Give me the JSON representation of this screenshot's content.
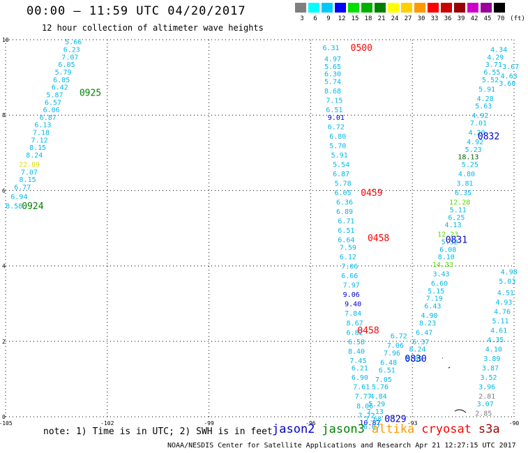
{
  "header": {
    "title": "00:00 – 11:59 UTC 04/20/2017",
    "subtitle": "12 hour collection of altimeter wave heights"
  },
  "color_scale": {
    "labels": [
      "3",
      "6",
      "9",
      "12",
      "15",
      "18",
      "21",
      "24",
      "27",
      "30",
      "33",
      "36",
      "39",
      "42",
      "45",
      "70"
    ],
    "unit": "(ft)",
    "colors": [
      "#7f7f7f",
      "#00ffff",
      "#00c8ff",
      "#0000ff",
      "#00e000",
      "#00b000",
      "#008000",
      "#ffff00",
      "#ffd000",
      "#ff9900",
      "#ff0000",
      "#cc0000",
      "#990000",
      "#cc00cc",
      "#990099",
      "#000000"
    ]
  },
  "axes": {
    "x_ticks": [
      "-105",
      "-102",
      "-99",
      "-96",
      "-93",
      "-90"
    ],
    "y_ticks": [
      "0",
      "2",
      "4",
      "6",
      "8",
      "10"
    ]
  },
  "chart_data": {
    "type": "scatter",
    "xlim": [
      -105,
      -90
    ],
    "ylim": [
      0,
      10
    ],
    "grid": true,
    "times": [
      {
        "text": "0925",
        "x": -102.5,
        "y": 8.6,
        "color": "#008000"
      },
      {
        "text": "0924",
        "x": -104.2,
        "y": 5.6,
        "color": "#008000"
      },
      {
        "text": "0500",
        "x": -94.5,
        "y": 9.8,
        "color": "#ff0000"
      },
      {
        "text": "0459",
        "x": -94.2,
        "y": 5.95,
        "color": "#ff0000"
      },
      {
        "text": "0458",
        "x": -94.0,
        "y": 4.75,
        "color": "#ff0000"
      },
      {
        "text": "0458",
        "x": -94.3,
        "y": 2.3,
        "color": "#ff0000"
      },
      {
        "text": "0832",
        "x": -90.75,
        "y": 7.45,
        "color": "#0000cc"
      },
      {
        "text": "0831",
        "x": -91.7,
        "y": 4.7,
        "color": "#0000cc"
      },
      {
        "text": "0830",
        "x": -92.9,
        "y": 1.55,
        "color": "#0000cc"
      },
      {
        "text": "0829",
        "x": -93.5,
        "y": -0.05,
        "color": "#0000cc"
      }
    ],
    "points": [
      {
        "v": "5.66",
        "x": -103.0,
        "y": 9.95,
        "c": "#00b8e8"
      },
      {
        "v": "6.23",
        "x": -103.05,
        "y": 9.75,
        "c": "#00b8e8"
      },
      {
        "v": "7.07",
        "x": -103.1,
        "y": 9.55,
        "c": "#00b8e8"
      },
      {
        "v": "6.05",
        "x": -103.2,
        "y": 9.35,
        "c": "#00b8e8"
      },
      {
        "v": "5.79",
        "x": -103.3,
        "y": 9.15,
        "c": "#00b8e8"
      },
      {
        "v": "6.85",
        "x": -103.35,
        "y": 8.95,
        "c": "#00b8e8"
      },
      {
        "v": "6.42",
        "x": -103.4,
        "y": 8.75,
        "c": "#00b8e8"
      },
      {
        "v": "5.87",
        "x": -103.55,
        "y": 8.55,
        "c": "#00b8e8"
      },
      {
        "v": "6.57",
        "x": -103.6,
        "y": 8.35,
        "c": "#00b8e8"
      },
      {
        "v": "6.06",
        "x": -103.65,
        "y": 8.15,
        "c": "#00b8e8"
      },
      {
        "v": "6.87",
        "x": -103.75,
        "y": 7.95,
        "c": "#00b8e8"
      },
      {
        "v": "6.13",
        "x": -103.9,
        "y": 7.75,
        "c": "#00b8e8"
      },
      {
        "v": "7.18",
        "x": -103.95,
        "y": 7.55,
        "c": "#00b8e8"
      },
      {
        "v": "7.12",
        "x": -104.0,
        "y": 7.35,
        "c": "#00b8e8"
      },
      {
        "v": "8.15",
        "x": -104.05,
        "y": 7.15,
        "c": "#00b8e8"
      },
      {
        "v": "8.24",
        "x": -104.15,
        "y": 6.95,
        "c": "#00b8e8"
      },
      {
        "v": "22.89",
        "x": -104.3,
        "y": 6.7,
        "c": "#dddd00"
      },
      {
        "v": "7.07",
        "x": -104.3,
        "y": 6.5,
        "c": "#00b8e8"
      },
      {
        "v": "8.15",
        "x": -104.35,
        "y": 6.3,
        "c": "#00b8e8"
      },
      {
        "v": "6.77",
        "x": -104.5,
        "y": 6.1,
        "c": "#00b8e8"
      },
      {
        "v": "6.94",
        "x": -104.6,
        "y": 5.85,
        "c": "#00b8e8"
      },
      {
        "v": "8.58",
        "x": -104.75,
        "y": 5.6,
        "c": "#00b8e8"
      },
      {
        "v": "6.31",
        "x": -95.4,
        "y": 9.8,
        "c": "#00b8e8"
      },
      {
        "v": "4.97",
        "x": -95.35,
        "y": 9.5,
        "c": "#00b8e8"
      },
      {
        "v": "5.65",
        "x": -95.35,
        "y": 9.3,
        "c": "#00b8e8"
      },
      {
        "v": "6.30",
        "x": -95.35,
        "y": 9.1,
        "c": "#00b8e8"
      },
      {
        "v": "5.74",
        "x": -95.35,
        "y": 8.9,
        "c": "#00b8e8"
      },
      {
        "v": "8.68",
        "x": -95.35,
        "y": 8.65,
        "c": "#00b8e8"
      },
      {
        "v": "7.15",
        "x": -95.3,
        "y": 8.4,
        "c": "#00b8e8"
      },
      {
        "v": "6.51",
        "x": -95.3,
        "y": 8.15,
        "c": "#00b8e8"
      },
      {
        "v": "9.01",
        "x": -95.25,
        "y": 7.95,
        "c": "#0000cc"
      },
      {
        "v": "6.72",
        "x": -95.25,
        "y": 7.7,
        "c": "#00b8e8"
      },
      {
        "v": "6.80",
        "x": -95.2,
        "y": 7.45,
        "c": "#00b8e8"
      },
      {
        "v": "5.70",
        "x": -95.2,
        "y": 7.2,
        "c": "#00b8e8"
      },
      {
        "v": "5.91",
        "x": -95.15,
        "y": 6.95,
        "c": "#00b8e8"
      },
      {
        "v": "5.54",
        "x": -95.1,
        "y": 6.7,
        "c": "#00b8e8"
      },
      {
        "v": "6.87",
        "x": -95.1,
        "y": 6.45,
        "c": "#00b8e8"
      },
      {
        "v": "5.78",
        "x": -95.05,
        "y": 6.2,
        "c": "#00b8e8"
      },
      {
        "v": "6.05",
        "x": -95.05,
        "y": 5.95,
        "c": "#00b8e8"
      },
      {
        "v": "6.36",
        "x": -95.0,
        "y": 5.7,
        "c": "#00b8e8"
      },
      {
        "v": "6.89",
        "x": -95.0,
        "y": 5.45,
        "c": "#00b8e8"
      },
      {
        "v": "6.71",
        "x": -94.95,
        "y": 5.2,
        "c": "#00b8e8"
      },
      {
        "v": "6.51",
        "x": -94.95,
        "y": 4.95,
        "c": "#00b8e8"
      },
      {
        "v": "6.64",
        "x": -94.95,
        "y": 4.7,
        "c": "#00b8e8"
      },
      {
        "v": "7.59",
        "x": -94.9,
        "y": 4.5,
        "c": "#00b8e8"
      },
      {
        "v": "6.12",
        "x": -94.9,
        "y": 4.25,
        "c": "#00b8e8"
      },
      {
        "v": "7.06",
        "x": -94.85,
        "y": 4.0,
        "c": "#00b8e8"
      },
      {
        "v": "6.66",
        "x": -94.85,
        "y": 3.75,
        "c": "#00b8e8"
      },
      {
        "v": "7.97",
        "x": -94.8,
        "y": 3.5,
        "c": "#00b8e8"
      },
      {
        "v": "9.06",
        "x": -94.8,
        "y": 3.25,
        "c": "#0000cc"
      },
      {
        "v": "9.40",
        "x": -94.75,
        "y": 3.0,
        "c": "#0000cc"
      },
      {
        "v": "7.84",
        "x": -94.75,
        "y": 2.75,
        "c": "#00b8e8"
      },
      {
        "v": "8.67",
        "x": -94.7,
        "y": 2.5,
        "c": "#00b8e8"
      },
      {
        "v": "6.82",
        "x": -94.7,
        "y": 2.25,
        "c": "#00b8e8"
      },
      {
        "v": "6.58",
        "x": -94.65,
        "y": 2.0,
        "c": "#00b8e8"
      },
      {
        "v": "8.40",
        "x": -94.65,
        "y": 1.75,
        "c": "#00b8e8"
      },
      {
        "v": "7.45",
        "x": -94.6,
        "y": 1.5,
        "c": "#00b8e8"
      },
      {
        "v": "6.21",
        "x": -94.55,
        "y": 1.3,
        "c": "#00b8e8"
      },
      {
        "v": "6.90",
        "x": -94.55,
        "y": 1.05,
        "c": "#00b8e8"
      },
      {
        "v": "7.61",
        "x": -94.5,
        "y": 0.8,
        "c": "#00b8e8"
      },
      {
        "v": "7.77",
        "x": -94.45,
        "y": 0.55,
        "c": "#00b8e8"
      },
      {
        "v": "8.06",
        "x": -94.4,
        "y": 0.3,
        "c": "#00b8e8"
      },
      {
        "v": "7.72",
        "x": -94.35,
        "y": 0.05,
        "c": "#00b8e8"
      },
      {
        "v": "10.87",
        "x": -94.25,
        "y": -0.15,
        "c": "#0000cc"
      },
      {
        "v": "6.72",
        "x": -93.4,
        "y": 2.15,
        "c": "#00b8e8"
      },
      {
        "v": "7.06",
        "x": -93.5,
        "y": 1.9,
        "c": "#00b8e8"
      },
      {
        "v": "7.96",
        "x": -93.6,
        "y": 1.7,
        "c": "#00b8e8"
      },
      {
        "v": "6.48",
        "x": -93.7,
        "y": 1.45,
        "c": "#00b8e8"
      },
      {
        "v": "6.51",
        "x": -93.75,
        "y": 1.25,
        "c": "#00b8e8"
      },
      {
        "v": "7.05",
        "x": -93.85,
        "y": 1.0,
        "c": "#00b8e8"
      },
      {
        "v": "5.76",
        "x": -93.95,
        "y": 0.8,
        "c": "#00b8e8"
      },
      {
        "v": "4.84",
        "x": -94.0,
        "y": 0.55,
        "c": "#00b8e8"
      },
      {
        "v": "5.29",
        "x": -94.05,
        "y": 0.35,
        "c": "#00b8e8"
      },
      {
        "v": "7.13",
        "x": -94.1,
        "y": 0.15,
        "c": "#00b8e8"
      },
      {
        "v": "7.68",
        "x": -94.15,
        "y": -0.05,
        "c": "#00b8e8"
      },
      {
        "v": "6.07",
        "x": -94.2,
        "y": -0.25,
        "c": "#00b8e8"
      },
      {
        "v": "4.34",
        "x": -90.45,
        "y": 9.75,
        "c": "#00b8e8"
      },
      {
        "v": "4.29",
        "x": -90.55,
        "y": 9.55,
        "c": "#00b8e8"
      },
      {
        "v": "3.71",
        "x": -90.6,
        "y": 9.35,
        "c": "#00b8e8"
      },
      {
        "v": "6.55",
        "x": -90.65,
        "y": 9.15,
        "c": "#00b8e8"
      },
      {
        "v": "5.52",
        "x": -90.7,
        "y": 8.95,
        "c": "#00b8e8"
      },
      {
        "v": "5.91",
        "x": -90.8,
        "y": 8.7,
        "c": "#00b8e8"
      },
      {
        "v": "4.28",
        "x": -90.85,
        "y": 8.45,
        "c": "#00b8e8"
      },
      {
        "v": "5.63",
        "x": -90.9,
        "y": 8.25,
        "c": "#00b8e8"
      },
      {
        "v": "4.92",
        "x": -91.0,
        "y": 8.0,
        "c": "#00b8e8"
      },
      {
        "v": "7.01",
        "x": -91.05,
        "y": 7.8,
        "c": "#00b8e8"
      },
      {
        "v": "4.20",
        "x": -91.1,
        "y": 7.55,
        "c": "#00b8e8"
      },
      {
        "v": "4.92",
        "x": -91.15,
        "y": 7.3,
        "c": "#00b8e8"
      },
      {
        "v": "5.23",
        "x": -91.2,
        "y": 7.1,
        "c": "#00b8e8"
      },
      {
        "v": "18.13",
        "x": -91.35,
        "y": 6.9,
        "c": "#006000"
      },
      {
        "v": "5.25",
        "x": -91.3,
        "y": 6.7,
        "c": "#00b8e8"
      },
      {
        "v": "4.80",
        "x": -91.4,
        "y": 6.45,
        "c": "#00b8e8"
      },
      {
        "v": "3.81",
        "x": -91.45,
        "y": 6.2,
        "c": "#00b8e8"
      },
      {
        "v": "6.35",
        "x": -91.5,
        "y": 5.95,
        "c": "#00b8e8"
      },
      {
        "v": "12.28",
        "x": -91.6,
        "y": 5.7,
        "c": "#55dd00"
      },
      {
        "v": "5.11",
        "x": -91.65,
        "y": 5.5,
        "c": "#00b8e8"
      },
      {
        "v": "6.25",
        "x": -91.7,
        "y": 5.3,
        "c": "#00b8e8"
      },
      {
        "v": "4.13",
        "x": -91.8,
        "y": 5.1,
        "c": "#00b8e8"
      },
      {
        "v": "12.23",
        "x": -91.95,
        "y": 4.85,
        "c": "#55dd00"
      },
      {
        "v": "5.32",
        "x": -91.9,
        "y": 4.65,
        "c": "#00b8e8"
      },
      {
        "v": "6.08",
        "x": -91.95,
        "y": 4.45,
        "c": "#00b8e8"
      },
      {
        "v": "8.10",
        "x": -92.0,
        "y": 4.25,
        "c": "#00b8e8"
      },
      {
        "v": "14.33",
        "x": -92.1,
        "y": 4.05,
        "c": "#55dd00"
      },
      {
        "v": "3.43",
        "x": -92.15,
        "y": 3.8,
        "c": "#00b8e8"
      },
      {
        "v": "6.60",
        "x": -92.2,
        "y": 3.55,
        "c": "#00b8e8"
      },
      {
        "v": "5.15",
        "x": -92.3,
        "y": 3.35,
        "c": "#00b8e8"
      },
      {
        "v": "7.19",
        "x": -92.35,
        "y": 3.15,
        "c": "#00b8e8"
      },
      {
        "v": "6.43",
        "x": -92.4,
        "y": 2.95,
        "c": "#00b8e8"
      },
      {
        "v": "4.90",
        "x": -92.5,
        "y": 2.7,
        "c": "#00b8e8"
      },
      {
        "v": "8.23",
        "x": -92.55,
        "y": 2.5,
        "c": "#00b8e8"
      },
      {
        "v": "6.47",
        "x": -92.65,
        "y": 2.25,
        "c": "#00b8e8"
      },
      {
        "v": "6.37",
        "x": -92.75,
        "y": 2.0,
        "c": "#00b8e8"
      },
      {
        "v": "8.24",
        "x": -92.85,
        "y": 1.8,
        "c": "#00b8e8"
      },
      {
        "v": "5.85",
        "x": -92.95,
        "y": 1.55,
        "c": "#00b8e8"
      },
      {
        "v": "3.67",
        "x": -90.1,
        "y": 9.3,
        "c": "#00b8e8"
      },
      {
        "v": "4.63",
        "x": -90.15,
        "y": 9.05,
        "c": "#00b8e8"
      },
      {
        "v": "3.60",
        "x": -90.2,
        "y": 8.85,
        "c": "#00b8e8"
      },
      {
        "v": "4.10",
        "x": -90.6,
        "y": 1.8,
        "c": "#00b8e8"
      },
      {
        "v": "3.89",
        "x": -90.65,
        "y": 1.55,
        "c": "#00b8e8"
      },
      {
        "v": "3.87",
        "x": -90.7,
        "y": 1.3,
        "c": "#00b8e8"
      },
      {
        "v": "3.52",
        "x": -90.75,
        "y": 1.05,
        "c": "#00b8e8"
      },
      {
        "v": "3.96",
        "x": -90.8,
        "y": 0.8,
        "c": "#00b8e8"
      },
      {
        "v": "2.81",
        "x": -90.8,
        "y": 0.55,
        "c": "#7f7f7f"
      },
      {
        "v": "3.07",
        "x": -90.85,
        "y": 0.35,
        "c": "#00b8e8"
      },
      {
        "v": "2.85",
        "x": -90.9,
        "y": 0.1,
        "c": "#7f7f7f"
      },
      {
        "v": "4.35",
        "x": -90.55,
        "y": 2.05,
        "c": "#00b8e8"
      },
      {
        "v": "4.61",
        "x": -90.45,
        "y": 2.3,
        "c": "#00b8e8"
      },
      {
        "v": "5.11",
        "x": -90.4,
        "y": 2.55,
        "c": "#00b8e8"
      },
      {
        "v": "4.76",
        "x": -90.35,
        "y": 2.8,
        "c": "#00b8e8"
      },
      {
        "v": "4.93",
        "x": -90.3,
        "y": 3.05,
        "c": "#00b8e8"
      },
      {
        "v": "4.51",
        "x": -90.25,
        "y": 3.3,
        "c": "#00b8e8"
      },
      {
        "v": "5.03",
        "x": -90.2,
        "y": 3.6,
        "c": "#00b8e8"
      },
      {
        "v": "4.98",
        "x": -90.15,
        "y": 3.85,
        "c": "#00b8e8"
      }
    ]
  },
  "note": "note: 1) Time is in UTC; 2) SWH is in feet",
  "legend": [
    {
      "label": "jason2",
      "color": "#0000cc"
    },
    {
      "label": "jason3",
      "color": "#008000"
    },
    {
      "label": "altika",
      "color": "#ff9900"
    },
    {
      "label": "cryosat",
      "color": "#ff0000"
    },
    {
      "label": "s3a",
      "color": "#990000"
    }
  ],
  "footer": "NOAA/NESDIS Center for Satellite Applications and Research   Apr 21 12:27:15 UTC 2017"
}
